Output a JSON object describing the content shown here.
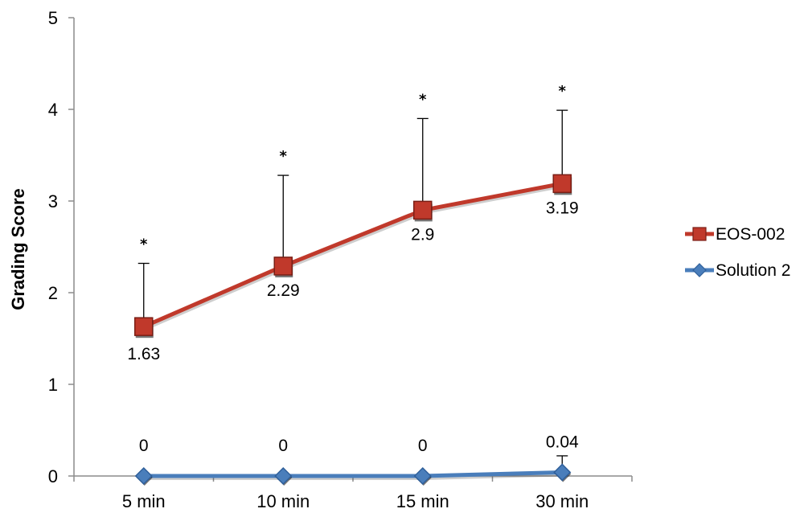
{
  "chart_data": {
    "type": "line",
    "categories": [
      "5 min",
      "10 min",
      "15 min",
      "30 min"
    ],
    "ylabel": "Grading Score",
    "xlabel": "",
    "ylim": [
      0,
      5
    ],
    "yticks": [
      "0",
      "1",
      "2",
      "3",
      "4",
      "5"
    ],
    "grid": false,
    "legend_position": "right",
    "significance_marker": "*",
    "series": [
      {
        "name": "EOS-002",
        "values": [
          1.63,
          2.29,
          2.9,
          3.19
        ],
        "labels": [
          "1.63",
          "2.29",
          "2.9",
          "3.19"
        ],
        "error_upper": [
          2.32,
          3.28,
          3.9,
          3.99
        ],
        "significant": [
          true,
          true,
          true,
          true
        ],
        "color": "#c0392b",
        "marker": "square"
      },
      {
        "name": "Solution 2",
        "values": [
          0,
          0,
          0,
          0.04
        ],
        "labels": [
          "0",
          "0",
          "0",
          "0.04"
        ],
        "error_upper": [
          null,
          null,
          null,
          0.22
        ],
        "significant": [
          false,
          false,
          false,
          false
        ],
        "color": "#4a7ebb",
        "marker": "diamond"
      }
    ]
  }
}
